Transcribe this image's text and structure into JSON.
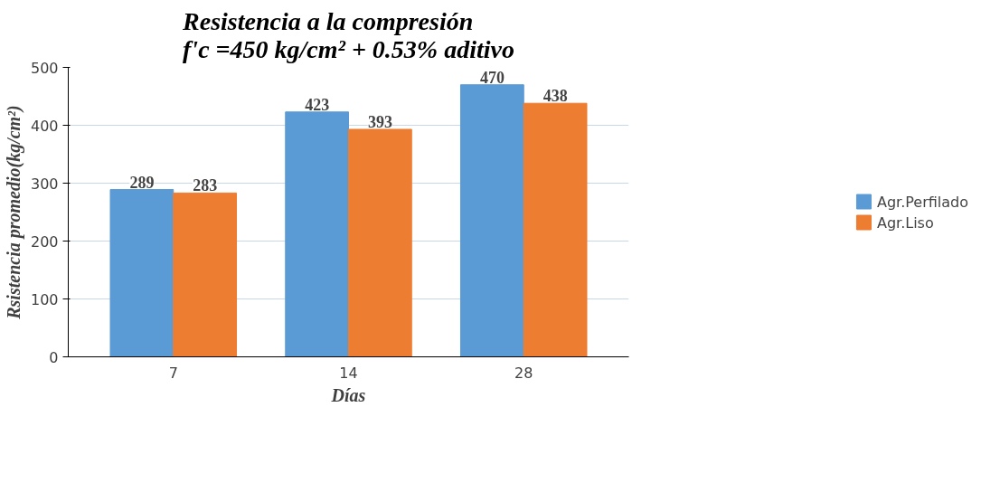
{
  "chart_data": {
    "type": "bar",
    "title": "Resistencia a la compresión\nf'c =450 kg/cm² + 0.53% aditivo",
    "xlabel": "Días",
    "ylabel": "Rsistencia promedio(kg/cm²)",
    "categories": [
      "7",
      "14",
      "28"
    ],
    "series": [
      {
        "name": "Agr.Perfilado",
        "color": "#5b9bd5",
        "values": [
          289,
          423,
          470
        ]
      },
      {
        "name": "Agr.Liso",
        "color": "#ed7d31",
        "values": [
          283,
          393,
          438
        ]
      }
    ],
    "ylim": [
      0,
      500
    ],
    "yticks": [
      0,
      100,
      200,
      300,
      400,
      500
    ],
    "grid": "y",
    "legend": "right",
    "data_labels": true
  }
}
